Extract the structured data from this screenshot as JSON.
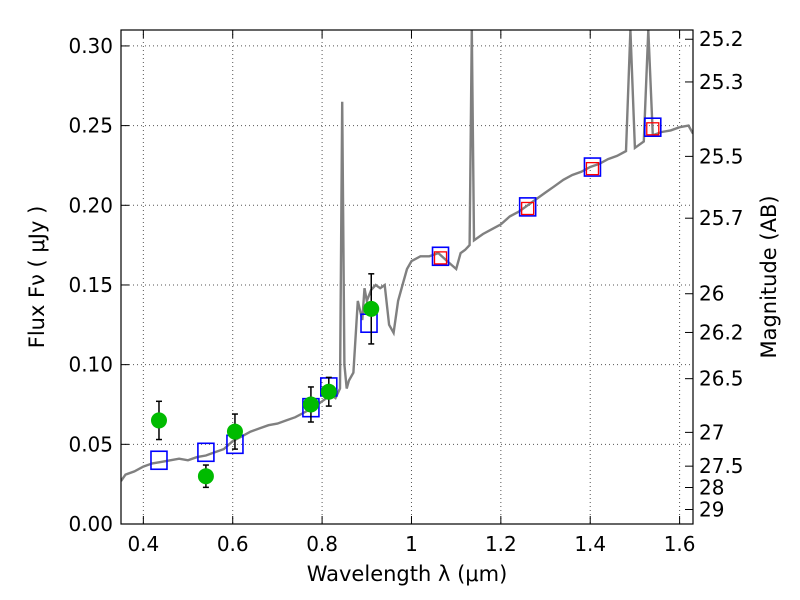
{
  "chart_data": {
    "type": "scatter",
    "xlabel": "Wavelength  λ (μm)",
    "ylabel": "Flux  Fν  ( μJy )",
    "y2label": "Magnitude (AB)",
    "xlim": [
      0.35,
      1.63
    ],
    "ylim": [
      0.0,
      0.31
    ],
    "grid": true,
    "xticks": [
      {
        "value": 0.4,
        "label": "0.4"
      },
      {
        "value": 0.6,
        "label": "0.6"
      },
      {
        "value": 0.8,
        "label": "0.8"
      },
      {
        "value": 1.0,
        "label": "1"
      },
      {
        "value": 1.2,
        "label": "1.2"
      },
      {
        "value": 1.4,
        "label": "1.4"
      },
      {
        "value": 1.6,
        "label": "1.6"
      }
    ],
    "yticks": [
      {
        "value": 0.0,
        "label": "0.00"
      },
      {
        "value": 0.05,
        "label": "0.05"
      },
      {
        "value": 0.1,
        "label": "0.10"
      },
      {
        "value": 0.15,
        "label": "0.15"
      },
      {
        "value": 0.2,
        "label": "0.20"
      },
      {
        "value": 0.25,
        "label": "0.25"
      },
      {
        "value": 0.3,
        "label": "0.30"
      }
    ],
    "y2ticks": [
      {
        "flux": 0.3042,
        "label": "25.2"
      },
      {
        "flux": 0.2774,
        "label": "25.3"
      },
      {
        "flux": 0.2307,
        "label": "25.5"
      },
      {
        "flux": 0.1919,
        "label": "25.7"
      },
      {
        "flux": 0.1445,
        "label": "26"
      },
      {
        "flux": 0.1202,
        "label": "26.2"
      },
      {
        "flux": 0.0912,
        "label": "26.5"
      },
      {
        "flux": 0.0575,
        "label": "27"
      },
      {
        "flux": 0.0363,
        "label": "27.5"
      },
      {
        "flux": 0.0229,
        "label": "28"
      },
      {
        "flux": 0.0091,
        "label": "29"
      }
    ],
    "series": [
      {
        "kind": "line",
        "color": "#808080",
        "points": [
          [
            0.35,
            0.027
          ],
          [
            0.36,
            0.031
          ],
          [
            0.38,
            0.033
          ],
          [
            0.4,
            0.036
          ],
          [
            0.42,
            0.038
          ],
          [
            0.44,
            0.039
          ],
          [
            0.46,
            0.04
          ],
          [
            0.48,
            0.041
          ],
          [
            0.5,
            0.04
          ],
          [
            0.52,
            0.042
          ],
          [
            0.54,
            0.043
          ],
          [
            0.56,
            0.045
          ],
          [
            0.58,
            0.047
          ],
          [
            0.6,
            0.052
          ],
          [
            0.62,
            0.055
          ],
          [
            0.64,
            0.058
          ],
          [
            0.66,
            0.06
          ],
          [
            0.68,
            0.062
          ],
          [
            0.7,
            0.063
          ],
          [
            0.72,
            0.065
          ],
          [
            0.74,
            0.067
          ],
          [
            0.76,
            0.07
          ],
          [
            0.78,
            0.073
          ],
          [
            0.8,
            0.077
          ],
          [
            0.82,
            0.081
          ],
          [
            0.83,
            0.079
          ],
          [
            0.84,
            0.085
          ],
          [
            0.845,
            0.265
          ],
          [
            0.85,
            0.1
          ],
          [
            0.855,
            0.085
          ],
          [
            0.86,
            0.09
          ],
          [
            0.87,
            0.095
          ],
          [
            0.88,
            0.14
          ],
          [
            0.89,
            0.128
          ],
          [
            0.895,
            0.148
          ],
          [
            0.9,
            0.14
          ],
          [
            0.91,
            0.147
          ],
          [
            0.92,
            0.15
          ],
          [
            0.93,
            0.148
          ],
          [
            0.94,
            0.15
          ],
          [
            0.95,
            0.125
          ],
          [
            0.96,
            0.12
          ],
          [
            0.97,
            0.14
          ],
          [
            0.98,
            0.15
          ],
          [
            0.99,
            0.16
          ],
          [
            1.0,
            0.165
          ],
          [
            1.02,
            0.168
          ],
          [
            1.04,
            0.168
          ],
          [
            1.06,
            0.17
          ],
          [
            1.08,
            0.165
          ],
          [
            1.1,
            0.16
          ],
          [
            1.11,
            0.17
          ],
          [
            1.12,
            0.172
          ],
          [
            1.13,
            0.175
          ],
          [
            1.135,
            0.31
          ],
          [
            1.14,
            0.178
          ],
          [
            1.16,
            0.182
          ],
          [
            1.18,
            0.185
          ],
          [
            1.2,
            0.188
          ],
          [
            1.22,
            0.193
          ],
          [
            1.24,
            0.196
          ],
          [
            1.26,
            0.2
          ],
          [
            1.28,
            0.204
          ],
          [
            1.3,
            0.208
          ],
          [
            1.32,
            0.212
          ],
          [
            1.34,
            0.216
          ],
          [
            1.36,
            0.219
          ],
          [
            1.38,
            0.221
          ],
          [
            1.4,
            0.224
          ],
          [
            1.42,
            0.226
          ],
          [
            1.44,
            0.229
          ],
          [
            1.46,
            0.231
          ],
          [
            1.48,
            0.234
          ],
          [
            1.49,
            0.31
          ],
          [
            1.5,
            0.236
          ],
          [
            1.52,
            0.24
          ],
          [
            1.53,
            0.31
          ],
          [
            1.54,
            0.244
          ],
          [
            1.56,
            0.246
          ],
          [
            1.58,
            0.247
          ],
          [
            1.6,
            0.249
          ],
          [
            1.62,
            0.25
          ],
          [
            1.63,
            0.245
          ]
        ]
      },
      {
        "kind": "model-squares",
        "color": "#0000ff",
        "points": [
          [
            0.435,
            0.04
          ],
          [
            0.54,
            0.045
          ],
          [
            0.605,
            0.05
          ],
          [
            0.775,
            0.073
          ],
          [
            0.815,
            0.086
          ],
          [
            0.905,
            0.126
          ],
          [
            1.065,
            0.168
          ],
          [
            1.26,
            0.199
          ],
          [
            1.405,
            0.224
          ],
          [
            1.54,
            0.249
          ]
        ]
      },
      {
        "kind": "upper-squares",
        "color": "#ff0000",
        "points": [
          [
            1.065,
            0.167
          ],
          [
            1.26,
            0.198
          ],
          [
            1.405,
            0.223
          ],
          [
            1.54,
            0.248
          ]
        ]
      },
      {
        "kind": "observed",
        "color": "#00bb00",
        "points": [
          {
            "x": 0.435,
            "y": 0.065,
            "err": 0.012
          },
          {
            "x": 0.54,
            "y": 0.03,
            "err": 0.007
          },
          {
            "x": 0.605,
            "y": 0.058,
            "err": 0.011
          },
          {
            "x": 0.775,
            "y": 0.075,
            "err": 0.011
          },
          {
            "x": 0.815,
            "y": 0.083,
            "err": 0.009
          },
          {
            "x": 0.91,
            "y": 0.135,
            "err": 0.022
          }
        ]
      }
    ]
  }
}
